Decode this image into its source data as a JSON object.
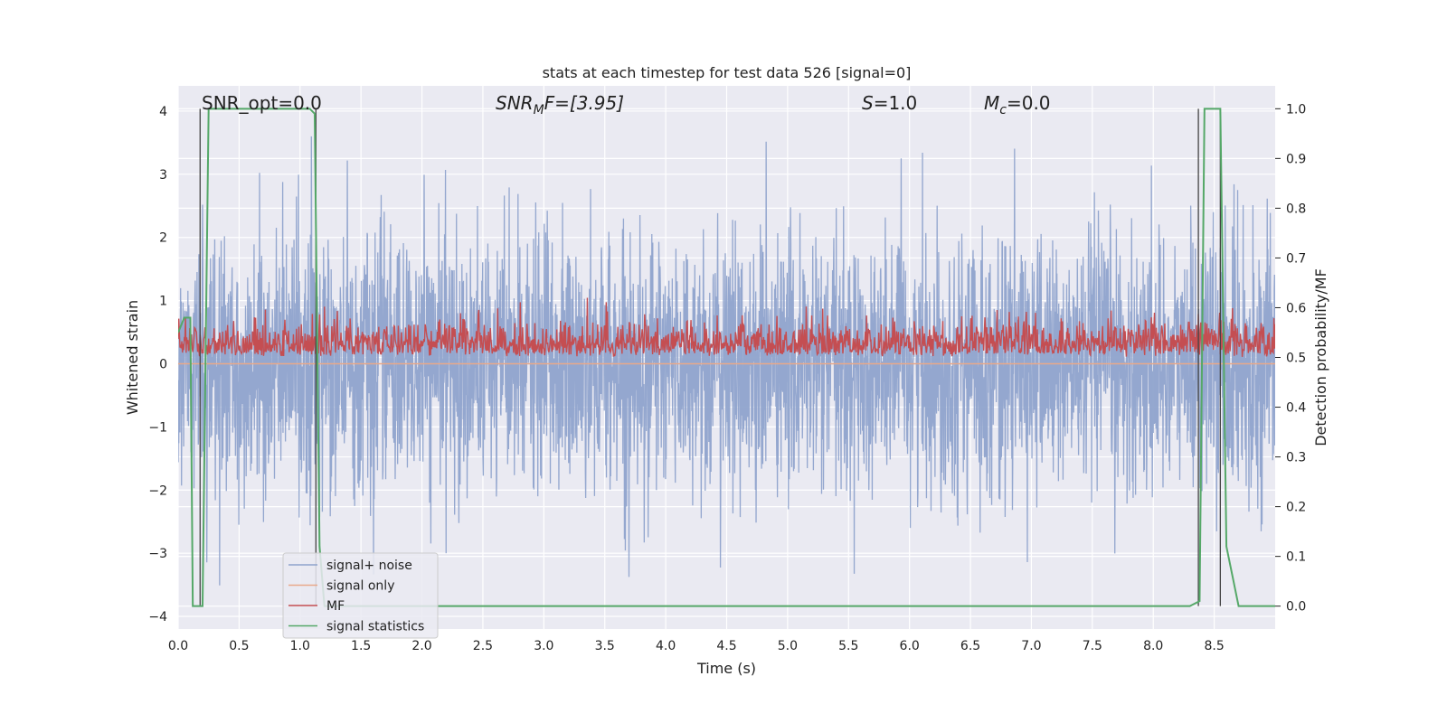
{
  "chart_data": {
    "type": "line",
    "title": "stats at each timestep for test data 526 [signal=0]",
    "xlabel": "Time (s)",
    "ylabel_left": "Whitened strain",
    "ylabel_right": "Detection probability/MF",
    "xlim": [
      0.0,
      9.0
    ],
    "ylim_left": [
      -4.2,
      4.4
    ],
    "ylim_right": [
      -0.046,
      1.046
    ],
    "x_ticks": [
      "0.0",
      "0.5",
      "1.0",
      "1.5",
      "2.0",
      "2.5",
      "3.0",
      "3.5",
      "4.0",
      "4.5",
      "5.0",
      "5.5",
      "6.0",
      "6.5",
      "7.0",
      "7.5",
      "8.0",
      "8.5"
    ],
    "y_ticks_left": [
      "4",
      "3",
      "2",
      "1",
      "0",
      "−1",
      "−2",
      "−3",
      "−4"
    ],
    "y_ticks_right": [
      "1.0",
      "0.9",
      "0.8",
      "0.7",
      "0.6",
      "0.5",
      "0.4",
      "0.3",
      "0.2",
      "0.1",
      "0.0"
    ],
    "grid": true,
    "legend_position": "lower-left",
    "annotations": {
      "snr_opt": "SNR_opt=0.0",
      "snr_mf": "SNR",
      "snr_mf_sub": "M",
      "snr_mf_tail": "F=[3.95]",
      "s": "S",
      "s_tail": "=1.0",
      "mc": "M",
      "mc_sub": "c",
      "mc_tail": "=0.0"
    },
    "series": [
      {
        "name": "signal+ noise",
        "color": "#8fa3cc",
        "axis": "left",
        "description_type": "noise",
        "amplitude_std": 1.0
      },
      {
        "name": "signal only",
        "color": "#e8a88a",
        "axis": "left",
        "values": [
          0.0,
          0.0
        ]
      },
      {
        "name": "MF",
        "color": "#c44e52",
        "axis": "right",
        "baseline": 0.5,
        "range": [
          0.5,
          0.62
        ]
      },
      {
        "name": "signal statistics",
        "color": "#55a868",
        "axis": "right",
        "x": [
          0.0,
          0.05,
          0.1,
          0.12,
          0.2,
          0.25,
          1.08,
          1.12,
          1.16,
          1.2,
          8.3,
          8.38,
          8.42,
          8.55,
          8.6,
          8.7,
          9.0
        ],
        "values": [
          0.55,
          0.58,
          0.58,
          0.0,
          0.0,
          1.0,
          1.0,
          0.99,
          0.12,
          0.0,
          0.0,
          0.01,
          1.0,
          1.0,
          0.12,
          0.0,
          0.0
        ]
      }
    ],
    "vertical_lines_x": [
      0.18,
      1.13,
      8.37,
      8.55
    ]
  }
}
